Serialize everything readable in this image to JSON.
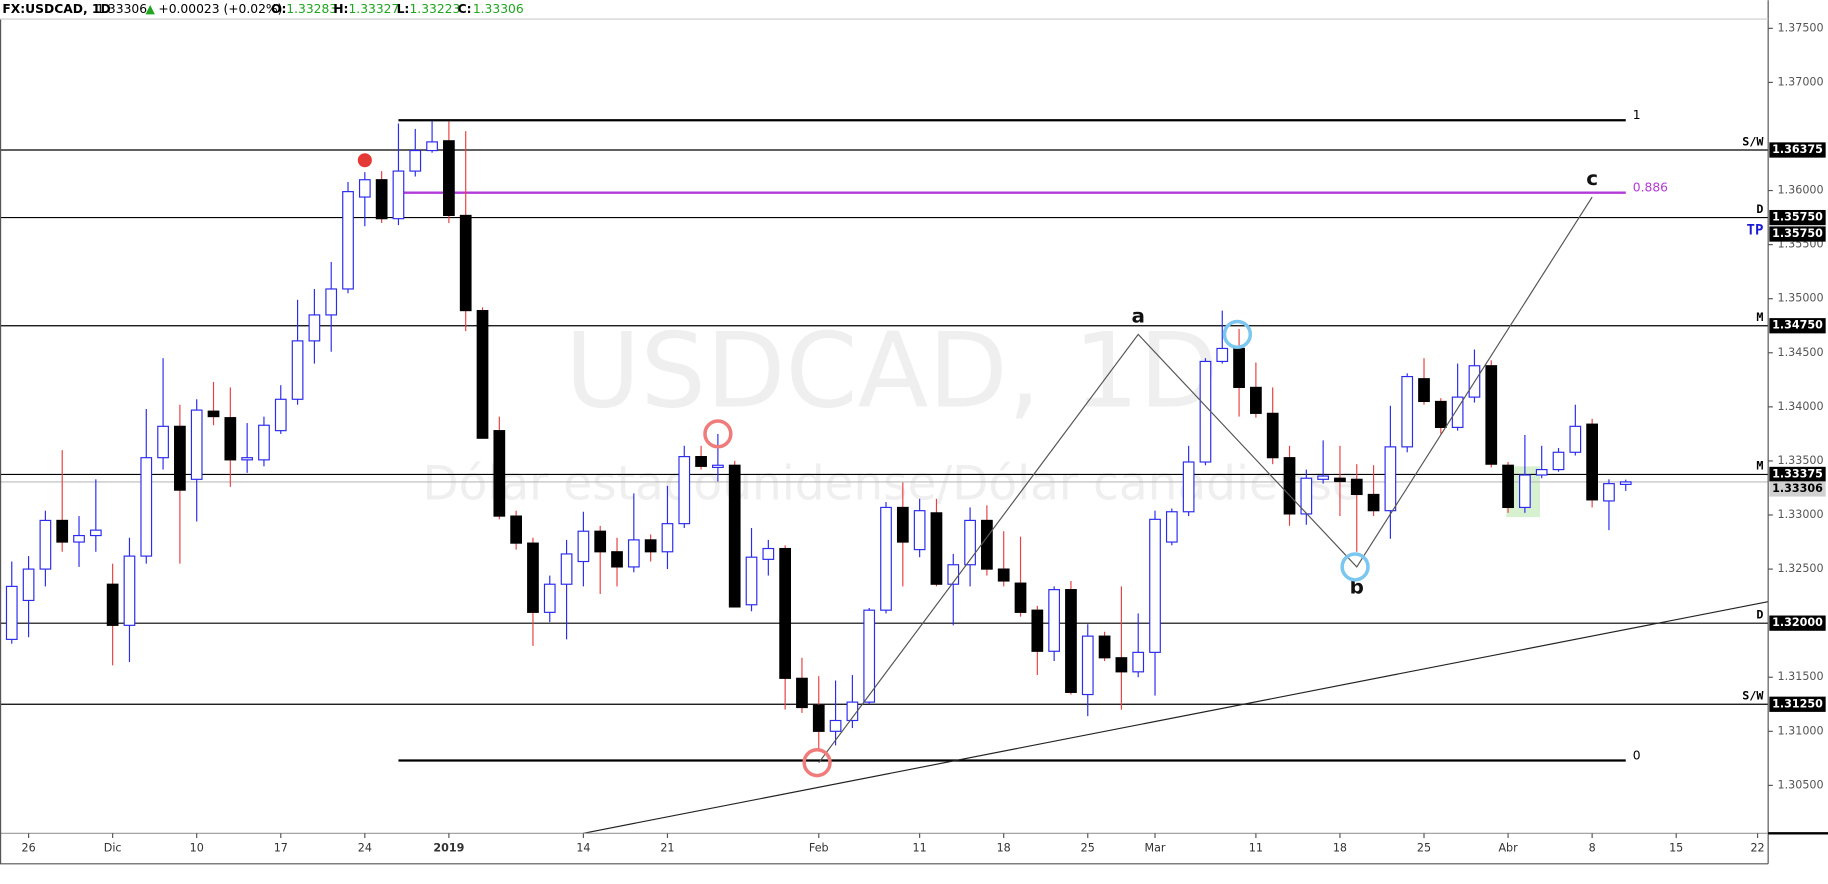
{
  "chart_data": {
    "type": "candlestick",
    "header": {
      "symbol": "FX:USDCAD, 1D",
      "last": 1.33306,
      "change": "+0.00023 (+0.02%)",
      "open_label": "O:",
      "open": 1.33283,
      "high_label": "H:",
      "high": 1.33327,
      "low_label": "L:",
      "low": 1.33223,
      "close_label": "C:",
      "close": 1.33306
    },
    "watermark": {
      "title": "USDCAD, 1D",
      "subtitle": "Dólar estadounidense/Dólar canadiense"
    },
    "up_color": "#2b2bf0",
    "down_color": "#000000",
    "wick_down_color": "#e84141",
    "open": [
      1.3185,
      1.3221,
      1.325,
      1.3295,
      1.3275,
      1.3281,
      1.3236,
      1.3198,
      1.3262,
      1.3353,
      1.3382,
      1.3333,
      1.3396,
      1.339,
      1.3351,
      1.3351,
      1.3378,
      1.3407,
      1.3461,
      1.3485,
      1.3509,
      1.3594,
      1.361,
      1.3574,
      1.3618,
      1.3637,
      1.3646,
      1.3577,
      1.3489,
      1.3378,
      1.3299,
      1.3274,
      1.321,
      1.3236,
      1.3257,
      1.3285,
      1.3266,
      1.3252,
      1.3277,
      1.3266,
      1.3292,
      1.3354,
      1.3344,
      1.3346,
      1.3217,
      1.3259,
      1.3269,
      1.3149,
      1.3124,
      1.31,
      1.311,
      1.3127,
      1.3212,
      1.3307,
      1.3268,
      1.3302,
      1.3236,
      1.3254,
      1.3295,
      1.325,
      1.3237,
      1.3212,
      1.3174,
      1.3231,
      1.3134,
      1.3188,
      1.3168,
      1.3155,
      1.3173,
      1.3275,
      1.3303,
      1.3349,
      1.3442,
      1.3454,
      1.3418,
      1.3394,
      1.3353,
      1.3301,
      1.3333,
      1.3334,
      1.3333,
      1.3319,
      1.3304,
      1.3363,
      1.3426,
      1.3405,
      1.3381,
      1.3409,
      1.3438,
      1.3346,
      1.3307,
      1.3337,
      1.3342,
      1.3358,
      1.3384,
      1.3313,
      1.33283
    ],
    "high": [
      1.3257,
      1.3262,
      1.3304,
      1.336,
      1.3299,
      1.3333,
      1.3255,
      1.3279,
      1.3398,
      1.3445,
      1.3402,
      1.3407,
      1.3423,
      1.3418,
      1.3385,
      1.3391,
      1.342,
      1.3499,
      1.3509,
      1.3534,
      1.3608,
      1.3617,
      1.3618,
      1.3662,
      1.3657,
      1.3664,
      1.3664,
      1.3655,
      1.3492,
      1.3391,
      1.3304,
      1.3279,
      1.3244,
      1.3277,
      1.3303,
      1.329,
      1.3279,
      1.332,
      1.3282,
      1.3327,
      1.3364,
      1.3364,
      1.3375,
      1.335,
      1.3288,
      1.3277,
      1.3272,
      1.3168,
      1.3151,
      1.3147,
      1.3152,
      1.3214,
      1.3312,
      1.333,
      1.3315,
      1.3315,
      1.3264,
      1.3307,
      1.3309,
      1.3285,
      1.328,
      1.3216,
      1.3234,
      1.3239,
      1.3199,
      1.3192,
      1.3234,
      1.3209,
      1.3304,
      1.3306,
      1.3364,
      1.3445,
      1.3489,
      1.3472,
      1.3441,
      1.3418,
      1.3364,
      1.3342,
      1.3369,
      1.3364,
      1.3347,
      1.3346,
      1.3401,
      1.3431,
      1.3445,
      1.3408,
      1.344,
      1.3453,
      1.3443,
      1.3349,
      1.3374,
      1.3364,
      1.3362,
      1.3402,
      1.3389,
      1.3333,
      1.33327
    ],
    "low": [
      1.3181,
      1.3187,
      1.3234,
      1.3266,
      1.3252,
      1.3266,
      1.3161,
      1.3164,
      1.3255,
      1.3342,
      1.3255,
      1.3294,
      1.3383,
      1.3326,
      1.3339,
      1.3345,
      1.3375,
      1.3402,
      1.344,
      1.3451,
      1.3505,
      1.3567,
      1.357,
      1.3568,
      1.3613,
      1.3635,
      1.357,
      1.347,
      1.3371,
      1.3296,
      1.3268,
      1.3179,
      1.3201,
      1.3185,
      1.3234,
      1.3227,
      1.3234,
      1.3247,
      1.3257,
      1.325,
      1.3288,
      1.3342,
      1.3331,
      1.3215,
      1.3211,
      1.3244,
      1.312,
      1.3117,
      1.3084,
      1.3087,
      1.3103,
      1.3125,
      1.3209,
      1.3234,
      1.3261,
      1.3234,
      1.3198,
      1.3234,
      1.3244,
      1.3234,
      1.3206,
      1.3152,
      1.3165,
      1.3134,
      1.3114,
      1.3165,
      1.312,
      1.315,
      1.3133,
      1.3272,
      1.3299,
      1.3346,
      1.344,
      1.3391,
      1.339,
      1.3347,
      1.329,
      1.3291,
      1.3329,
      1.3299,
      1.3266,
      1.3299,
      1.3278,
      1.3358,
      1.3402,
      1.3375,
      1.3378,
      1.3404,
      1.3344,
      1.3302,
      1.3302,
      1.3334,
      1.334,
      1.3355,
      1.3307,
      1.3286,
      1.33223
    ],
    "close": [
      1.3234,
      1.325,
      1.3295,
      1.3275,
      1.3281,
      1.3286,
      1.3198,
      1.3262,
      1.3353,
      1.3382,
      1.3323,
      1.3397,
      1.3391,
      1.3351,
      1.3353,
      1.3383,
      1.3407,
      1.3461,
      1.3485,
      1.3509,
      1.3599,
      1.361,
      1.3574,
      1.3618,
      1.3637,
      1.3645,
      1.3577,
      1.3489,
      1.3371,
      1.3299,
      1.3274,
      1.321,
      1.3236,
      1.3264,
      1.3285,
      1.3266,
      1.3252,
      1.3277,
      1.3266,
      1.3292,
      1.3354,
      1.3345,
      1.3346,
      1.3215,
      1.3261,
      1.3269,
      1.3149,
      1.3122,
      1.31,
      1.311,
      1.3127,
      1.3212,
      1.3307,
      1.3275,
      1.3304,
      1.3236,
      1.3254,
      1.3295,
      1.325,
      1.3239,
      1.321,
      1.3174,
      1.3231,
      1.3136,
      1.3188,
      1.3168,
      1.3155,
      1.3173,
      1.3296,
      1.3303,
      1.3349,
      1.3442,
      1.3454,
      1.3418,
      1.3394,
      1.3353,
      1.3301,
      1.3334,
      1.3336,
      1.3331,
      1.3319,
      1.3304,
      1.3363,
      1.3428,
      1.3405,
      1.3381,
      1.3409,
      1.3438,
      1.3347,
      1.3307,
      1.3337,
      1.3342,
      1.3358,
      1.3382,
      1.3314,
      1.3329,
      1.33306
    ],
    "xlim": [
      -0.7,
      104.47
    ],
    "xticks": [
      {
        "value": 1,
        "label": "26"
      },
      {
        "value": 6,
        "label": "Dic"
      },
      {
        "value": 11,
        "label": "10"
      },
      {
        "value": 16,
        "label": "17"
      },
      {
        "value": 21,
        "label": "24"
      },
      {
        "value": 26,
        "label": "2019"
      },
      {
        "value": 34,
        "label": "14"
      },
      {
        "value": 39,
        "label": "21"
      },
      {
        "value": 48,
        "label": "Feb"
      },
      {
        "value": 54,
        "label": "11"
      },
      {
        "value": 59,
        "label": "18"
      },
      {
        "value": 64,
        "label": "25"
      },
      {
        "value": 68,
        "label": "Mar"
      },
      {
        "value": 74,
        "label": "11"
      },
      {
        "value": 79,
        "label": "18"
      },
      {
        "value": 84,
        "label": "25"
      },
      {
        "value": 89,
        "label": "Abr"
      },
      {
        "value": 94,
        "label": "8"
      },
      {
        "value": 99,
        "label": "15"
      },
      {
        "value": 103.84,
        "label": "22"
      }
    ],
    "ylim": [
      1.30057,
      1.37586
    ],
    "yticks": [
      {
        "value": 1.375,
        "label": "1.37500"
      },
      {
        "value": 1.37,
        "label": "1.37000"
      },
      {
        "value": 1.36,
        "label": "1.36000"
      },
      {
        "value": 1.355,
        "label": "1.35500"
      },
      {
        "value": 1.35,
        "label": "1.35000"
      },
      {
        "value": 1.345,
        "label": "1.34500"
      },
      {
        "value": 1.34,
        "label": "1.34000"
      },
      {
        "value": 1.335,
        "label": "1.33500"
      },
      {
        "value": 1.33,
        "label": "1.33000"
      },
      {
        "value": 1.325,
        "label": "1.32500"
      },
      {
        "value": 1.315,
        "label": "1.31500"
      },
      {
        "value": 1.31,
        "label": "1.31000"
      },
      {
        "value": 1.305,
        "label": "1.30500"
      }
    ],
    "levels": [
      {
        "name": "S/W",
        "price": 1.36375
      },
      {
        "name": "D",
        "price": {
          "value": 1.3575,
          "label": "1.35750"
        }
      },
      {
        "name": "TP",
        "price": {
          "value": 1.3575,
          "label": "1.35750"
        },
        "color": "#1a1ad6"
      },
      {
        "name": "M",
        "price": {
          "value": 1.3475,
          "label": "1.34750"
        }
      },
      {
        "name": "M",
        "price": 1.33375
      },
      {
        "name": "D",
        "price": {
          "value": 1.32,
          "label": "1.32000"
        }
      },
      {
        "name": "S/W",
        "price": {
          "value": 1.3125,
          "label": "1.31250"
        }
      }
    ],
    "last_price": 1.33306,
    "fib": {
      "start": 23,
      "end": 96,
      "levels": [
        {
          "label": "1",
          "value": 1.3665,
          "color": "#000000"
        },
        {
          "label": "0.886",
          "value": 1.3598,
          "color": "#b23ad8"
        },
        {
          "label": "0",
          "value": 1.3073,
          "color": "#000000"
        }
      ]
    },
    "wave": {
      "x": [
        48,
        67,
        80,
        94
      ],
      "y": [
        1.3071,
        1.3467,
        1.3252,
        1.3594
      ],
      "labels": [
        null,
        "a",
        "b",
        "c"
      ]
    },
    "trendline": {
      "x": [
        34,
        104.5
      ],
      "y": [
        1.30057,
        1.322
      ]
    },
    "circles": [
      {
        "x": 42,
        "y": 1.3375,
        "color": "#ef7b7b"
      },
      {
        "x": 47.9,
        "y": 1.3071,
        "color": "#ef7b7b"
      },
      {
        "x": 72.9,
        "y": 1.3467,
        "color": "#7cc7ef"
      },
      {
        "x": 79.9,
        "y": 1.3252,
        "color": "#7cc7ef"
      }
    ],
    "dot": {
      "x": 21,
      "y": 1.3628,
      "color": "#e53935"
    },
    "highlight": {
      "x": [
        88.9,
        90.9
      ],
      "y": [
        1.3345,
        1.3298
      ],
      "color": "#d6f0d0"
    }
  }
}
